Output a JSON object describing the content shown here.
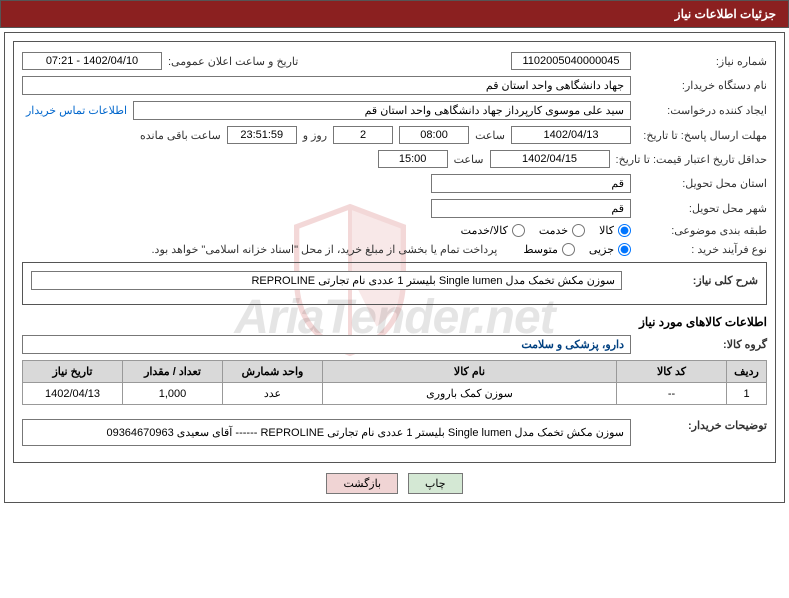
{
  "header": {
    "title": "جزئیات اطلاعات نیاز"
  },
  "fields": {
    "request_no_label": "شماره نیاز:",
    "request_no": "1102005040000045",
    "announce_label": "تاریخ و ساعت اعلان عمومی:",
    "announce_value": "1402/04/10 - 07:21",
    "buyer_org_label": "نام دستگاه خریدار:",
    "buyer_org": "جهاد دانشگاهی واحد استان قم",
    "requester_label": "ایجاد کننده درخواست:",
    "requester": "سید علی موسوی کارپرداز جهاد دانشگاهی واحد استان قم",
    "contact_link": "اطلاعات تماس خریدار",
    "deadline_label": "مهلت ارسال پاسخ: تا تاریخ:",
    "deadline_date": "1402/04/13",
    "deadline_time_label": "ساعت",
    "deadline_time": "08:00",
    "days_remain": "2",
    "days_remain_label": "روز و",
    "time_remain": "23:51:59",
    "time_remain_label": "ساعت باقی مانده",
    "validity_label": "حداقل تاریخ اعتبار قیمت: تا تاریخ:",
    "validity_date": "1402/04/15",
    "validity_time": "15:00",
    "province_label": "استان محل تحویل:",
    "province": "قم",
    "city_label": "شهر محل تحویل:",
    "city": "قم",
    "class_label": "طبقه بندی موضوعی:",
    "radio_goods": "کالا",
    "radio_service": "خدمت",
    "radio_both": "کالا/خدمت",
    "process_label": "نوع فرآیند خرید :",
    "radio_partial": "جزیی",
    "radio_medium": "متوسط",
    "process_note": "پرداخت تمام یا بخشی از مبلغ خرید، از محل \"اسناد خزانه اسلامی\" خواهد بود.",
    "summary_label": "شرح کلی نیاز:",
    "summary_text": "سوزن مکش تخمک مدل Single lumen بلیستر 1 عددی نام تجارتی REPROLINE",
    "goods_info_title": "اطلاعات کالاهای مورد نیاز",
    "group_label": "گروه کالا:",
    "group_value": "دارو، پزشکی و سلامت",
    "buyer_notes_label": "توضیحات خریدار:",
    "buyer_notes": "سوزن مکش تخمک مدل Single lumen بلیستر 1 عددی نام تجارتی REPROLINE  ------   آقای سعیدی 09364670963"
  },
  "table": {
    "headers": {
      "row": "ردیف",
      "code": "کد کالا",
      "name": "نام کالا",
      "unit": "واحد شمارش",
      "qty": "تعداد / مقدار",
      "date": "تاریخ نیاز"
    },
    "rows": [
      {
        "row": "1",
        "code": "--",
        "name": "سوزن کمک باروری",
        "unit": "عدد",
        "qty": "1,000",
        "date": "1402/04/13"
      }
    ]
  },
  "buttons": {
    "print": "چاپ",
    "back": "بازگشت"
  },
  "colors": {
    "header_bg": "#8b2020",
    "border": "#555555",
    "th_bg": "#d9d9d9",
    "link": "#0066cc"
  }
}
